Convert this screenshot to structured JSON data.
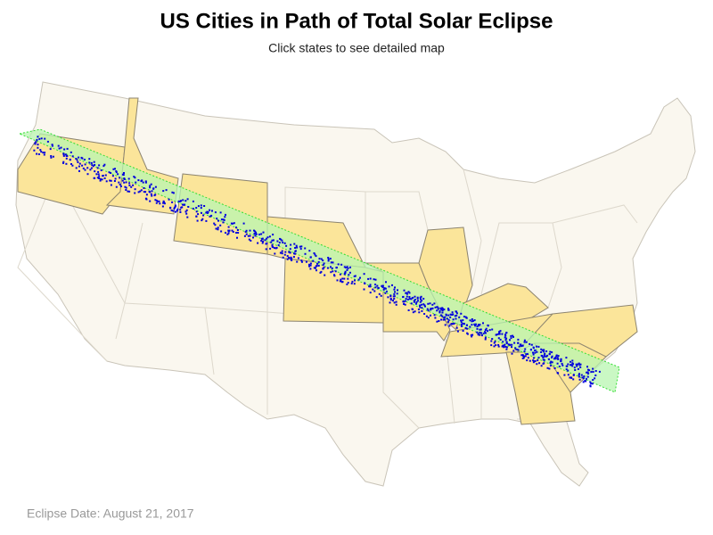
{
  "title": "US Cities in Path of Total Solar Eclipse",
  "subtitle": "Click states to see detailed map",
  "footnote": "Eclipse Date: August 21, 2017"
}
